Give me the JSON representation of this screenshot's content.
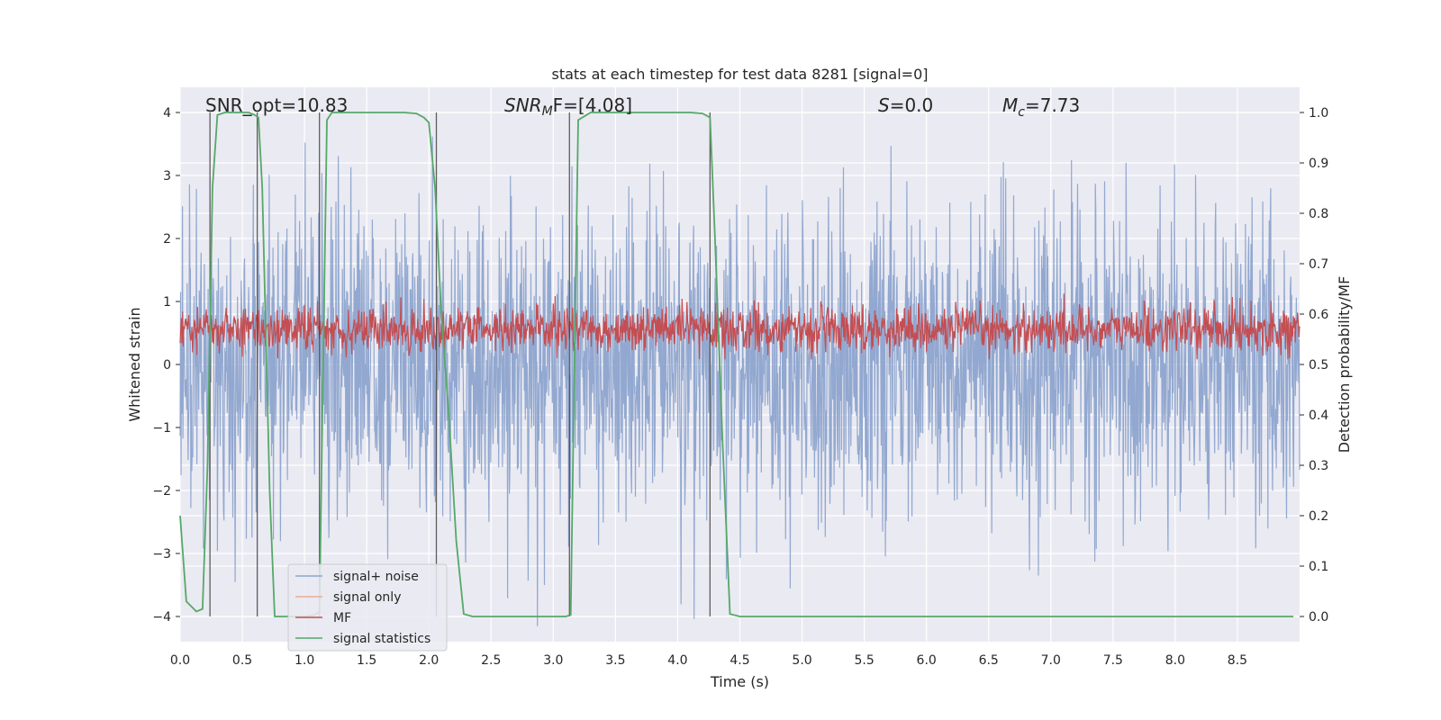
{
  "chart_data": {
    "type": "line",
    "title": "stats at each timestep for test data 8281 [signal=0]",
    "xlabel": "Time (s)",
    "ylabel": "Whitened strain",
    "y2label": "Detection probability/MF",
    "xlim": [
      0.0,
      9.0
    ],
    "ylim": [
      -4.4,
      4.4
    ],
    "y2lim": [
      -0.05,
      1.05
    ],
    "xticks": [
      "0.0",
      "0.5",
      "1.0",
      "1.5",
      "2.0",
      "2.5",
      "3.0",
      "3.5",
      "4.0",
      "4.5",
      "5.0",
      "5.5",
      "6.0",
      "6.5",
      "7.0",
      "7.5",
      "8.0",
      "8.5"
    ],
    "yticks": [
      "−4",
      "−3",
      "−2",
      "−1",
      "0",
      "1",
      "2",
      "3",
      "4"
    ],
    "y2ticks": [
      "0.0",
      "0.1",
      "0.2",
      "0.3",
      "0.4",
      "0.5",
      "0.6",
      "0.7",
      "0.8",
      "0.9",
      "1.0"
    ],
    "grid": true,
    "legend": {
      "position": "lower-left",
      "entries": [
        "signal+ noise",
        "signal only",
        "MF",
        "signal statistics"
      ]
    },
    "annotations": {
      "snr_opt": "SNR_opt=10.83",
      "snr_mf_base": "SNR",
      "snr_mf_sub": "M",
      "snr_mf_rest": "F=[4.08]",
      "s_sym": "S",
      "s_rest": "=0.0",
      "mc_sym": "M",
      "mc_sub": "c",
      "mc_rest": "=7.73"
    },
    "series": [
      {
        "name": "signal+ noise",
        "color": "#8da4cd",
        "description": "whitened noise strain, approx. within [-4.2, 4.2]",
        "amplitude_envelope": 4.2
      },
      {
        "name": "signal only",
        "color": "#f0a98e",
        "values": []
      },
      {
        "name": "MF",
        "color": "#c44e52",
        "axis": "y2",
        "range": [
          0.52,
          0.62
        ]
      },
      {
        "name": "signal statistics",
        "color": "#55a868",
        "axis": "y2",
        "x": [
          0.0,
          0.05,
          0.13,
          0.18,
          0.22,
          0.26,
          0.3,
          0.36,
          0.45,
          0.55,
          0.6,
          0.63,
          0.66,
          0.69,
          0.72,
          0.76,
          0.82,
          0.9,
          1.0,
          1.08,
          1.12,
          1.15,
          1.18,
          1.22,
          1.3,
          1.5,
          1.8,
          1.9,
          1.96,
          2.0,
          2.05,
          2.1,
          2.16,
          2.22,
          2.28,
          2.35,
          2.5,
          2.8,
          3.1,
          3.14,
          3.17,
          3.2,
          3.3,
          3.5,
          3.8,
          4.1,
          4.2,
          4.26,
          4.3,
          4.36,
          4.42,
          4.5,
          5.0,
          6.0,
          7.0,
          8.0,
          8.95
        ],
        "values": [
          0.2,
          0.03,
          0.01,
          0.015,
          0.3,
          0.85,
          0.995,
          1.0,
          1.0,
          1.0,
          0.995,
          0.99,
          0.85,
          0.55,
          0.25,
          0.0,
          0.0,
          0.0,
          0.0,
          0.003,
          0.01,
          0.5,
          0.985,
          1.0,
          1.0,
          1.0,
          1.0,
          0.998,
          0.99,
          0.98,
          0.85,
          0.6,
          0.4,
          0.15,
          0.005,
          0.0,
          0.0,
          0.0,
          0.0,
          0.003,
          0.5,
          0.985,
          1.0,
          1.0,
          1.0,
          1.0,
          0.998,
          0.99,
          0.75,
          0.35,
          0.005,
          0.0,
          0.0,
          0.0,
          0.0,
          0.0,
          0.0
        ]
      }
    ],
    "vlines": [
      0.24,
      0.62,
      1.12,
      2.06,
      3.13,
      4.26
    ]
  }
}
